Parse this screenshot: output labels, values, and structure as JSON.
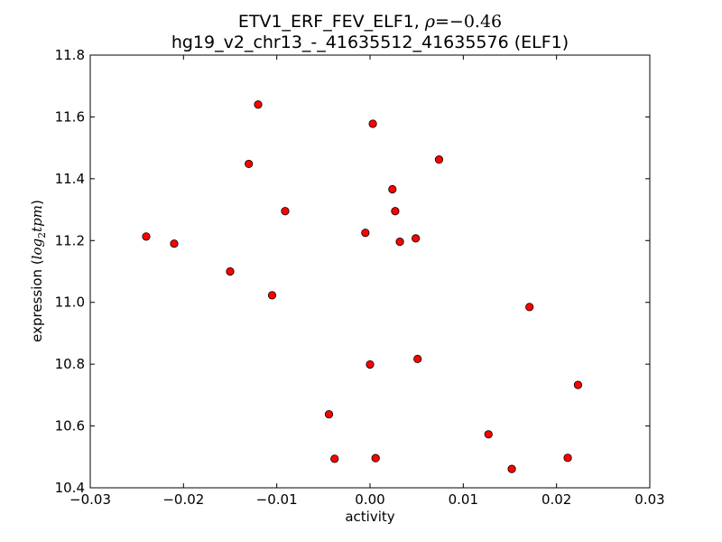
{
  "chart_data": {
    "type": "scatter",
    "title_line1_prefix": "ETV1_ERF_FEV_ELF1, ",
    "title_line1_rho": "ρ",
    "title_line1_eq": "=",
    "title_line1_value": "−0.46",
    "title_line2": "hg19_v2_chr13_-_41635512_41635576 (ELF1)",
    "xlabel": "activity",
    "ylabel_prefix": "expression (",
    "ylabel_log": "log",
    "ylabel_sub": "2",
    "ylabel_tpm": "tpm",
    "ylabel_suffix": ")",
    "xlim": [
      -0.03,
      0.03
    ],
    "ylim": [
      10.4,
      11.8
    ],
    "xticks": [
      -0.03,
      -0.02,
      -0.01,
      0.0,
      0.01,
      0.02,
      0.03
    ],
    "xtick_labels": [
      "−0.03",
      "−0.02",
      "−0.01",
      "0.00",
      "0.01",
      "0.02",
      "0.03"
    ],
    "yticks": [
      10.4,
      10.6,
      10.8,
      11.0,
      11.2,
      11.4,
      11.6,
      11.8
    ],
    "ytick_labels": [
      "10.4",
      "10.6",
      "10.8",
      "11.0",
      "11.2",
      "11.4",
      "11.6",
      "11.8"
    ],
    "grid": false,
    "marker_color": "#ff0000",
    "marker_edge_color": "#000000",
    "points": [
      {
        "x": -0.024,
        "y": 11.213
      },
      {
        "x": -0.021,
        "y": 11.19
      },
      {
        "x": -0.015,
        "y": 11.1
      },
      {
        "x": -0.013,
        "y": 11.448
      },
      {
        "x": -0.012,
        "y": 11.64
      },
      {
        "x": -0.0105,
        "y": 11.023
      },
      {
        "x": -0.0091,
        "y": 11.295
      },
      {
        "x": -0.0044,
        "y": 10.638
      },
      {
        "x": -0.0038,
        "y": 10.494
      },
      {
        "x": -0.0005,
        "y": 11.225
      },
      {
        "x": 0.0,
        "y": 10.799
      },
      {
        "x": 0.0003,
        "y": 11.578
      },
      {
        "x": 0.0006,
        "y": 10.496
      },
      {
        "x": 0.0024,
        "y": 11.366
      },
      {
        "x": 0.0027,
        "y": 11.295
      },
      {
        "x": 0.0032,
        "y": 11.196
      },
      {
        "x": 0.0049,
        "y": 11.207
      },
      {
        "x": 0.0051,
        "y": 10.817
      },
      {
        "x": 0.0074,
        "y": 11.462
      },
      {
        "x": 0.0127,
        "y": 10.573
      },
      {
        "x": 0.0152,
        "y": 10.461
      },
      {
        "x": 0.0171,
        "y": 10.985
      },
      {
        "x": 0.0212,
        "y": 10.497
      },
      {
        "x": 0.0223,
        "y": 10.733
      }
    ]
  }
}
